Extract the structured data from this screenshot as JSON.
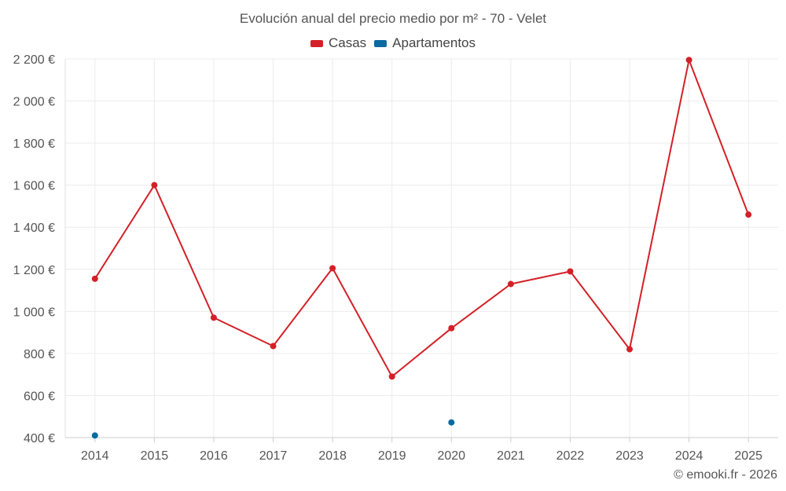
{
  "chart_data": {
    "type": "line",
    "title": "Evolución anual del precio medio por m² - 70 - Velet",
    "categories": [
      "2014",
      "2015",
      "2016",
      "2017",
      "2018",
      "2019",
      "2020",
      "2021",
      "2022",
      "2023",
      "2024",
      "2025"
    ],
    "ylim": [
      400,
      2200
    ],
    "yticks": [
      400,
      600,
      800,
      1000,
      1200,
      1400,
      1600,
      1800,
      2000,
      2200
    ],
    "ytick_labels": [
      "400 €",
      "600 €",
      "800 €",
      "1 000 €",
      "1 200 €",
      "1 400 €",
      "1 600 €",
      "1 800 €",
      "2 000 €",
      "2 200 €"
    ],
    "grid": true,
    "legend_position": "top-center",
    "series": [
      {
        "name": "Casas",
        "color": "#d32027",
        "values": [
          1155,
          1600,
          970,
          835,
          1205,
          690,
          920,
          1130,
          1190,
          820,
          2195,
          1460
        ]
      },
      {
        "name": "Apartamentos",
        "color": "#0a6aa1",
        "values": [
          410,
          null,
          null,
          null,
          null,
          null,
          472,
          null,
          null,
          null,
          null,
          null
        ]
      }
    ]
  },
  "credit": "© emooki.fr - 2026"
}
